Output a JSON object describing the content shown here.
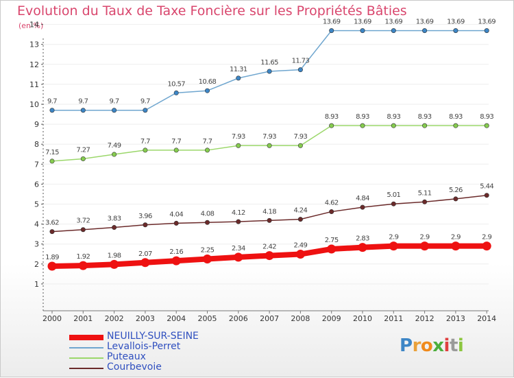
{
  "chart_data": {
    "type": "line",
    "title": "Evolution du Taux de Taxe Foncière sur les Propriétés Bâties",
    "subtitle": "(en %)",
    "categories": [
      "2000",
      "2001",
      "2002",
      "2003",
      "2004",
      "2005",
      "2006",
      "2007",
      "2008",
      "2009",
      "2010",
      "2011",
      "2012",
      "2013",
      "2014"
    ],
    "ylim": [
      0,
      14
    ],
    "yticks": [
      "1",
      "2",
      "3",
      "4",
      "5",
      "6",
      "7",
      "8",
      "9",
      "10",
      "11",
      "12",
      "13",
      "14"
    ],
    "series": [
      {
        "name": "NEUILLY-SUR-SEINE",
        "color": "#ee1111",
        "values": [
          1.89,
          1.92,
          1.98,
          2.07,
          2.16,
          2.25,
          2.34,
          2.42,
          2.49,
          2.75,
          2.83,
          2.9,
          2.9,
          2.9,
          2.9
        ],
        "labels": [
          "1.89",
          "1.92",
          "1.98",
          "2.07",
          "2.16",
          "2.25",
          "2.34",
          "2.42",
          "2.49",
          "2.75",
          "2.83",
          "2.9",
          "2.9",
          "2.9",
          "2.9"
        ]
      },
      {
        "name": "Levallois-Perret",
        "color": "#6fa6cf",
        "marker": "#3d86c6",
        "values": [
          9.7,
          9.7,
          9.7,
          9.7,
          10.57,
          10.68,
          11.31,
          11.65,
          11.73,
          13.69,
          13.69,
          13.69,
          13.69,
          13.69,
          13.69
        ],
        "labels": [
          "9.7",
          "9.7",
          "9.7",
          "9.7",
          "10.57",
          "10.68",
          "11.31",
          "11.65",
          "11.73",
          "13.69",
          "13.69",
          "13.69",
          "13.69",
          "13.69",
          "13.69"
        ]
      },
      {
        "name": "Puteaux",
        "color": "#9bd76a",
        "marker": "#86cc4f",
        "values": [
          7.15,
          7.27,
          7.49,
          7.7,
          7.7,
          7.7,
          7.93,
          7.93,
          7.93,
          8.93,
          8.93,
          8.93,
          8.93,
          8.93,
          8.93
        ],
        "labels": [
          "7.15",
          "7.27",
          "7.49",
          "7.7",
          "7.7",
          "7.7",
          "7.93",
          "7.93",
          "7.93",
          "8.93",
          "8.93",
          "8.93",
          "8.93",
          "8.93",
          "8.93"
        ]
      },
      {
        "name": "Courbevoie",
        "color": "#6b2a2a",
        "marker": "#6b2a2a",
        "values": [
          3.62,
          3.72,
          3.83,
          3.96,
          4.04,
          4.08,
          4.12,
          4.18,
          4.24,
          4.62,
          4.84,
          5.01,
          5.11,
          5.26,
          5.44
        ],
        "labels": [
          "3.62",
          "3.72",
          "3.83",
          "3.96",
          "4.04",
          "4.08",
          "4.12",
          "4.18",
          "4.24",
          "4.62",
          "4.84",
          "5.01",
          "5.11",
          "5.26",
          "5.44"
        ]
      }
    ]
  },
  "legend": [
    {
      "name": "NEUILLY-SUR-SEINE",
      "color": "#ee1111"
    },
    {
      "name": "Levallois-Perret",
      "color": "#6fa6cf"
    },
    {
      "name": "Puteaux",
      "color": "#9bd76a"
    },
    {
      "name": "Courbevoie",
      "color": "#6b2a2a"
    }
  ],
  "logo": {
    "letters": [
      "P",
      "r",
      "o",
      "x",
      "i",
      "t",
      "i"
    ],
    "colors": [
      "#3d86c6",
      "#e9a13b",
      "#f08a1c",
      "#4cae3c",
      "#e04040",
      "#9a9a9a",
      "#8cc63f"
    ]
  }
}
